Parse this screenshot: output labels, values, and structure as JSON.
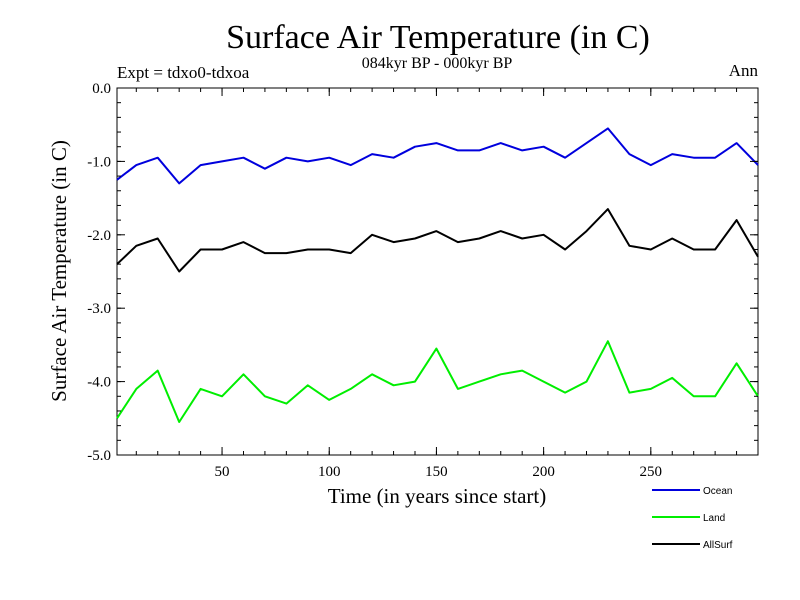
{
  "chart_data": {
    "type": "line",
    "title": "Surface Air Temperature (in C)",
    "subtitle": "084kyr BP - 000kyr BP",
    "expt_label": "Expt = tdxo0-tdxoa",
    "period_label": "Ann",
    "xlabel": "Time (in years since start)",
    "ylabel": "Surface Air Temperature (in C)",
    "xlim": [
      1,
      300
    ],
    "ylim": [
      -5.0,
      0.0
    ],
    "x_ticks": [
      50,
      100,
      150,
      200,
      250
    ],
    "x_tick_labels": [
      "50",
      "100",
      "150",
      "200",
      "250"
    ],
    "y_ticks": [
      -5.0,
      -4.0,
      -3.0,
      -2.0,
      -1.0,
      0.0
    ],
    "y_tick_labels": [
      "-5.0",
      "-4.0",
      "-3.0",
      "-2.0",
      "-1.0",
      "0.0"
    ],
    "grid": false,
    "legend_position": "bottom-right, below plot",
    "x": [
      1,
      10,
      20,
      30,
      40,
      50,
      60,
      70,
      80,
      90,
      100,
      110,
      120,
      130,
      140,
      150,
      160,
      170,
      180,
      190,
      200,
      210,
      220,
      230,
      240,
      250,
      260,
      270,
      280,
      290,
      300
    ],
    "series": [
      {
        "name": "Ocean",
        "color": "#0000dd",
        "values": [
          -1.25,
          -1.05,
          -0.95,
          -1.3,
          -1.05,
          -1.0,
          -0.95,
          -1.1,
          -0.95,
          -1.0,
          -0.95,
          -1.05,
          -0.9,
          -0.95,
          -0.8,
          -0.75,
          -0.85,
          -0.85,
          -0.75,
          -0.85,
          -0.8,
          -0.95,
          -0.75,
          -0.55,
          -0.9,
          -1.05,
          -0.9,
          -0.95,
          -0.95,
          -0.75,
          -1.05
        ]
      },
      {
        "name": "Land",
        "color": "#00ee00",
        "values": [
          -4.5,
          -4.1,
          -3.85,
          -4.55,
          -4.1,
          -4.2,
          -3.9,
          -4.2,
          -4.3,
          -4.05,
          -4.25,
          -4.1,
          -3.9,
          -4.05,
          -4.0,
          -3.55,
          -4.1,
          -4.0,
          -3.9,
          -3.85,
          -4.0,
          -4.15,
          -4.0,
          -3.45,
          -4.15,
          -4.1,
          -3.95,
          -4.2,
          -4.2,
          -3.75,
          -4.2
        ]
      },
      {
        "name": "AllSurf",
        "color": "#000000",
        "values": [
          -2.4,
          -2.15,
          -2.05,
          -2.5,
          -2.2,
          -2.2,
          -2.1,
          -2.25,
          -2.25,
          -2.2,
          -2.2,
          -2.25,
          -2.0,
          -2.1,
          -2.05,
          -1.95,
          -2.1,
          -2.05,
          -1.95,
          -2.05,
          -2.0,
          -2.2,
          -1.95,
          -1.65,
          -2.15,
          -2.2,
          -2.05,
          -2.2,
          -2.2,
          -1.8,
          -2.3
        ]
      }
    ]
  }
}
